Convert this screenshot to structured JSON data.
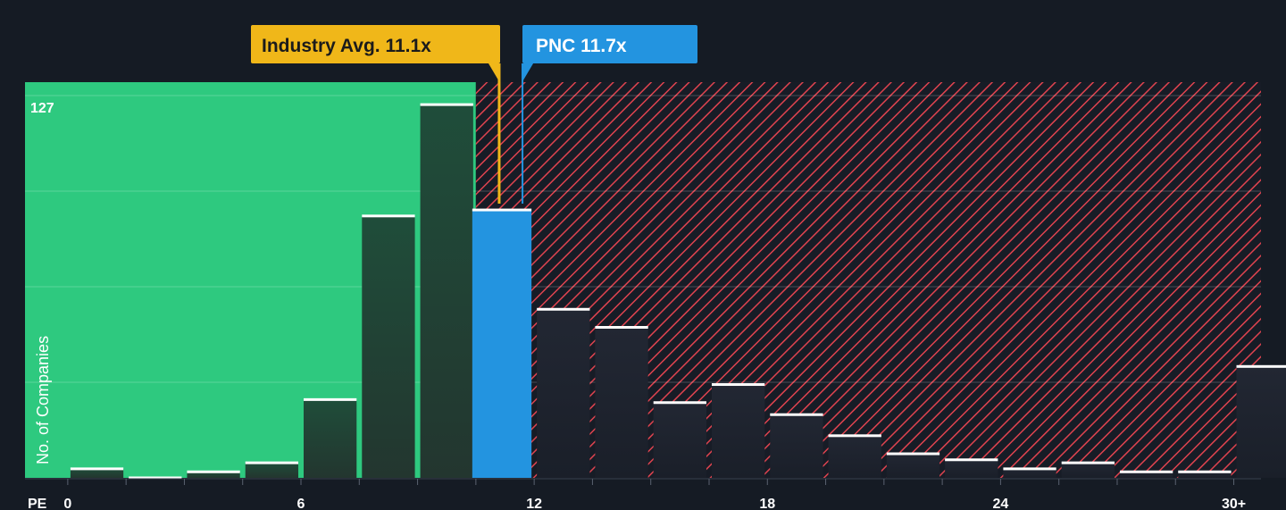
{
  "chart_data": {
    "type": "bar",
    "xlabel": "PE",
    "ylabel": "No. of Companies",
    "y_max_label": "127",
    "x_ticks": [
      "0",
      "6",
      "12",
      "18",
      "24",
      "30+"
    ],
    "x_tick_values": [
      0,
      6,
      12,
      18,
      24,
      30
    ],
    "bins": [
      {
        "start": 0,
        "end": 1.5,
        "value": 3
      },
      {
        "start": 1.5,
        "end": 3,
        "value": 0
      },
      {
        "start": 3,
        "end": 4.5,
        "value": 2
      },
      {
        "start": 4.5,
        "end": 6,
        "value": 5
      },
      {
        "start": 6,
        "end": 7.5,
        "value": 26
      },
      {
        "start": 7.5,
        "end": 9,
        "value": 87
      },
      {
        "start": 9,
        "end": 10.5,
        "value": 124
      },
      {
        "start": 10.5,
        "end": 12,
        "value": 89
      },
      {
        "start": 12,
        "end": 13.5,
        "value": 56
      },
      {
        "start": 13.5,
        "end": 15,
        "value": 50
      },
      {
        "start": 15,
        "end": 16.5,
        "value": 25
      },
      {
        "start": 16.5,
        "end": 18,
        "value": 31
      },
      {
        "start": 18,
        "end": 19.5,
        "value": 21
      },
      {
        "start": 19.5,
        "end": 21,
        "value": 14
      },
      {
        "start": 21,
        "end": 22.5,
        "value": 8
      },
      {
        "start": 22.5,
        "end": 24,
        "value": 6
      },
      {
        "start": 24,
        "end": 25.5,
        "value": 3
      },
      {
        "start": 25.5,
        "end": 27,
        "value": 5
      },
      {
        "start": 27,
        "end": 28.5,
        "value": 2
      },
      {
        "start": 28.5,
        "end": 30,
        "value": 2
      },
      {
        "start": 30,
        "end": 31.5,
        "value": 37
      }
    ],
    "ylim": [
      0,
      127
    ],
    "xlim": [
      -1.1,
      30.7
    ],
    "highlight_bin_index": 7,
    "industry_avg": {
      "label": "Industry Avg. 11.1x",
      "value": 11.1
    },
    "company": {
      "label": "PNC 11.7x",
      "value": 11.7
    },
    "colors": {
      "background": "#151b24",
      "good_zone": "#2ec97f",
      "bad_zone_hatch": "#e0434f",
      "bar_dark": "#1f4d3a",
      "bar_cap": "#ffffff",
      "highlight_bar": "#2394e0",
      "industry_callout": "#f0b719",
      "company_callout": "#2394e0"
    }
  }
}
